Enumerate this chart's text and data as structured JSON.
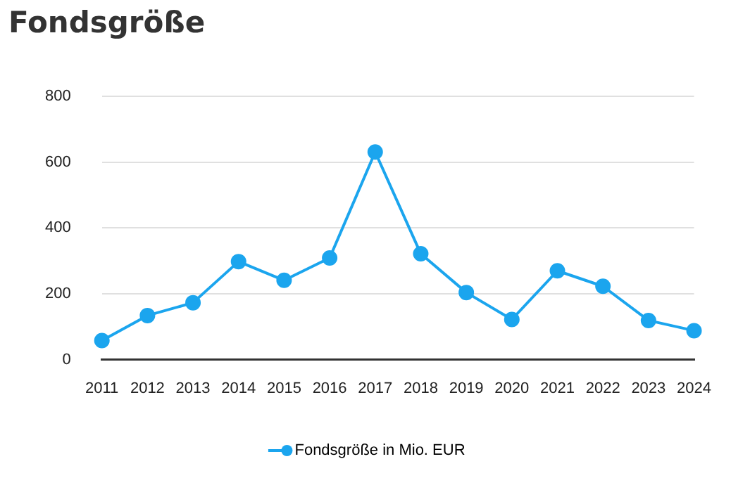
{
  "chart_data": {
    "type": "line",
    "title": "Fondsgröße",
    "categories": [
      "2011",
      "2012",
      "2013",
      "2014",
      "2015",
      "2016",
      "2017",
      "2018",
      "2019",
      "2020",
      "2021",
      "2022",
      "2023",
      "2024"
    ],
    "series": [
      {
        "name": "Fondsgröße in Mio. EUR",
        "color": "#1ba5ee",
        "values": [
          58,
          134,
          173,
          298,
          241,
          309,
          631,
          322,
          204,
          122,
          270,
          223,
          119,
          88
        ]
      }
    ],
    "ylim": [
      0,
      800
    ],
    "yticks": [
      0,
      200,
      400,
      600,
      800
    ],
    "grid": "y",
    "legend": "bottom",
    "marker": "circle",
    "line_style": "solid"
  }
}
